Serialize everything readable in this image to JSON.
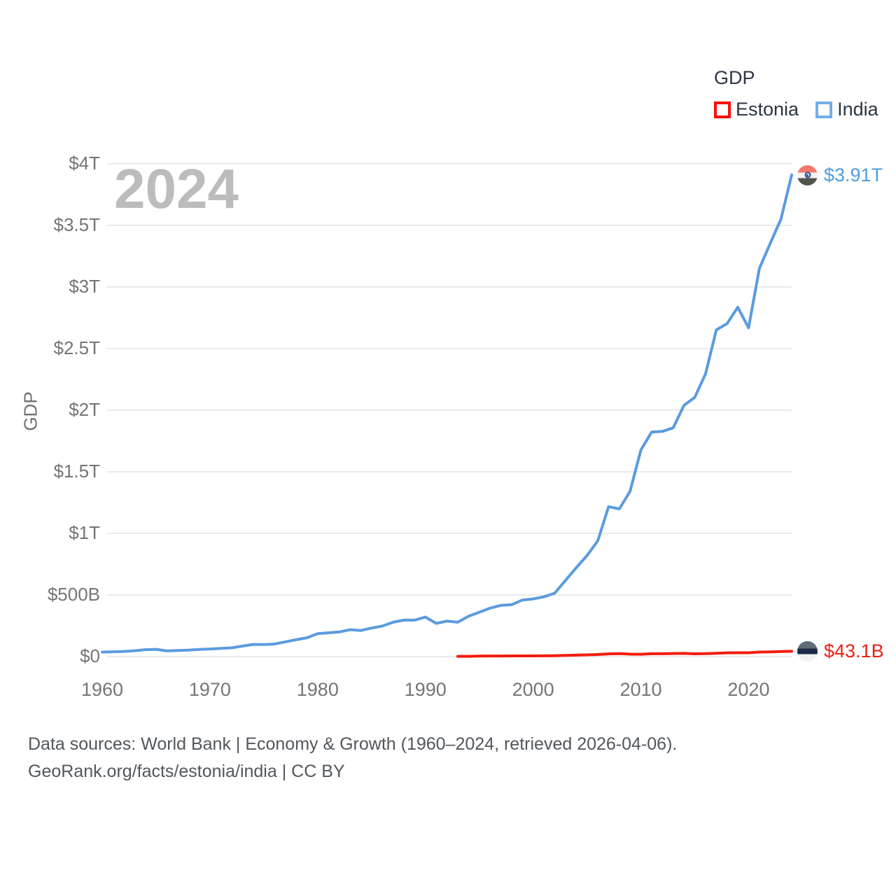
{
  "legend": {
    "title": "GDP",
    "items": [
      {
        "id": "estonia",
        "label": "Estonia",
        "color": "#fb100d"
      },
      {
        "id": "india",
        "label": "India",
        "color": "#73ade8"
      }
    ]
  },
  "watermark": "2024",
  "axis": {
    "y_label": "GDP"
  },
  "end_labels": {
    "india": {
      "text": "$3.91T",
      "color": "#4f9ce0"
    },
    "estonia": {
      "text": "$43.1B",
      "color": "#ed2115"
    }
  },
  "footer": {
    "line1": "Data sources: World Bank | Economy & Growth (1960–2024, retrieved 2026-04-06).",
    "line2": "GeoRank.org/facts/estonia/india | CC BY"
  },
  "colors": {
    "grid": "#eaeaea",
    "tick_text": "#757575",
    "legend_text": "#2c3642",
    "watermark": "#bcbcbc"
  },
  "chart_data": {
    "type": "line",
    "title": "GDP",
    "ylabel": "GDP",
    "x_range": [
      1960,
      2024
    ],
    "y_range_billions": [
      0,
      4000
    ],
    "grid": true,
    "legend_position": "top-right",
    "yticks": [
      {
        "label": "$0",
        "billions": 0
      },
      {
        "label": "$500B",
        "billions": 500
      },
      {
        "label": "$1T",
        "billions": 1000
      },
      {
        "label": "$1.5T",
        "billions": 1500
      },
      {
        "label": "$2T",
        "billions": 2000
      },
      {
        "label": "$2.5T",
        "billions": 2500
      },
      {
        "label": "$3T",
        "billions": 3000
      },
      {
        "label": "$3.5T",
        "billions": 3500
      },
      {
        "label": "$4T",
        "billions": 4000
      }
    ],
    "xticks": [
      {
        "label": "1960",
        "year": 1960
      },
      {
        "label": "1970",
        "year": 1970
      },
      {
        "label": "1980",
        "year": 1980
      },
      {
        "label": "1990",
        "year": 1990
      },
      {
        "label": "2000",
        "year": 2000
      },
      {
        "label": "2010",
        "year": 2010
      },
      {
        "label": "2020",
        "year": 2020
      }
    ],
    "series": [
      {
        "name": "India",
        "color": "#5b9bdf",
        "stroke_width": 4,
        "start_year": 1960,
        "end_value_label": "$3.91T",
        "values_billions": [
          37,
          39,
          42,
          48,
          56,
          59,
          46,
          50,
          53,
          58,
          62,
          67,
          71,
          85,
          99,
          98,
          102,
          120,
          137,
          153,
          186,
          193,
          200,
          218,
          212,
          232,
          248,
          279,
          296,
          296,
          321,
          270,
          288,
          279,
          327,
          360,
          393,
          416,
          421,
          459,
          468,
          485,
          515,
          618,
          721,
          820,
          940,
          1217,
          1199,
          1342,
          1676,
          1823,
          1828,
          1857,
          2039,
          2104,
          2295,
          2651,
          2703,
          2836,
          2668,
          3150,
          3353,
          3550,
          3910
        ]
      },
      {
        "name": "Estonia",
        "color": "#f11d0e",
        "stroke_width": 4,
        "start_year": 1993,
        "end_value_label": "$43.1B",
        "values_billions": [
          2.0,
          2.4,
          4.5,
          4.9,
          5.0,
          5.6,
          5.7,
          5.7,
          6.2,
          7.3,
          9.8,
          12.1,
          14.0,
          16.8,
          22.2,
          24.2,
          19.7,
          19.5,
          23.2,
          23.1,
          25.1,
          26.2,
          22.9,
          24.1,
          26.9,
          30.6,
          31.1,
          31.4,
          37.2,
          38.1,
          41.0,
          43.1
        ]
      }
    ],
    "flags": {
      "india": {
        "stripes": [
          "#f4796c",
          "#f6f5f2",
          "#50544f"
        ],
        "chakra": "#2b4a8e"
      },
      "estonia": {
        "stripes": [
          "#5f6b76",
          "#1d2a45",
          "#f0f1f3"
        ]
      }
    }
  }
}
